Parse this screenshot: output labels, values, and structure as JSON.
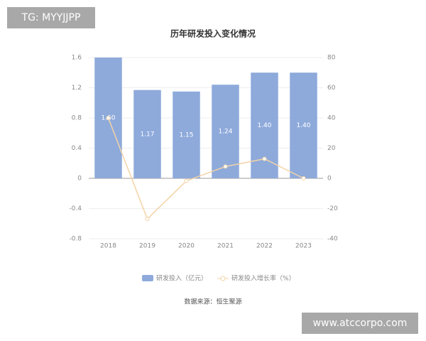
{
  "chart_data": {
    "type": "bar",
    "title": "历年研发投入变化情况",
    "categories": [
      "2018",
      "2019",
      "2020",
      "2021",
      "2022",
      "2023"
    ],
    "series": [
      {
        "name": "研发投入（亿元）",
        "type": "bar",
        "color": "#8eaadb",
        "values": [
          1.6,
          1.17,
          1.15,
          1.24,
          1.4,
          1.4
        ],
        "value_labels": [
          "1.60",
          "1.17",
          "1.15",
          "1.24",
          "1.40",
          "1.40"
        ]
      },
      {
        "name": "研发投入增长率（%）",
        "type": "line",
        "axis": "y2",
        "color": "#f3d3a6",
        "values": [
          40,
          -26.9,
          -1.7,
          7.8,
          12.9,
          0
        ]
      }
    ],
    "ylim": [
      -0.8,
      1.6
    ],
    "yticks": [
      -0.8,
      -0.4,
      0,
      0.4,
      0.8,
      1.2,
      1.6
    ],
    "y2lim": [
      -40,
      80
    ],
    "y2ticks": [
      -40,
      -20,
      0,
      20,
      40,
      60,
      80
    ],
    "grid": true,
    "legend": "bottom",
    "source": "数据来源：恒生聚源"
  },
  "watermarks": {
    "top_left": "TG: MYYJJPP",
    "bottom_right": "www.atccorpo.com"
  }
}
